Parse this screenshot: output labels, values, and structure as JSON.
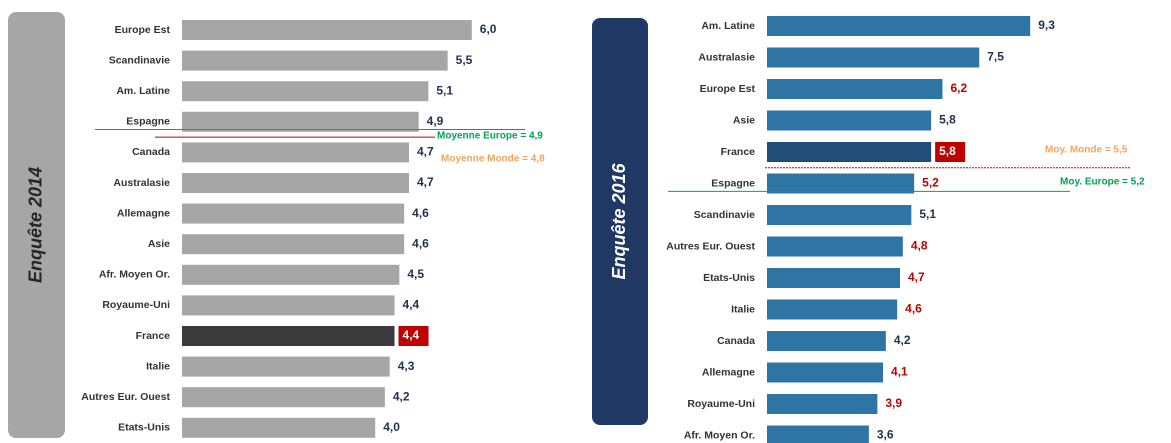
{
  "chart_data": [
    {
      "type": "bar",
      "orientation": "horizontal",
      "panel_label": "Enquête 2014",
      "categories": [
        "Europe Est",
        "Scandinavie",
        "Am. Latine",
        "Espagne",
        "Canada",
        "Australasie",
        "Allemagne",
        "Asie",
        "Afr. Moyen Or.",
        "Royaume-Uni",
        "France",
        "Italie",
        "Autres Eur. Ouest",
        "Etats-Unis"
      ],
      "values": [
        6.0,
        5.5,
        5.1,
        4.9,
        4.7,
        4.7,
        4.6,
        4.6,
        4.5,
        4.4,
        4.4,
        4.3,
        4.2,
        4.0
      ],
      "value_labels": [
        "6,0",
        "5,5",
        "5,1",
        "4,9",
        "4,7",
        "4,7",
        "4,6",
        "4,6",
        "4,5",
        "4,4",
        "4,4",
        "4,3",
        "4,2",
        "4,0"
      ],
      "colors": [
        "#a6a6a6",
        "#a6a6a6",
        "#a6a6a6",
        "#a6a6a6",
        "#a6a6a6",
        "#a6a6a6",
        "#a6a6a6",
        "#a6a6a6",
        "#a6a6a6",
        "#a6a6a6",
        "#3a3a3a",
        "#a6a6a6",
        "#a6a6a6",
        "#a6a6a6"
      ],
      "label_colors": [
        "#1f3050",
        "#1f3050",
        "#1f3050",
        "#1f3050",
        "#1f3050",
        "#1f3050",
        "#1f3050",
        "#1f3050",
        "#1f3050",
        "#1f3050",
        "#ffffff",
        "#1f3050",
        "#1f3050",
        "#1f3050"
      ],
      "label_box_color": "#c00000",
      "panel_color": "#a6a6a6",
      "panel_text_color": "#262626",
      "reference_lines": [
        {
          "label": "Moyenne Europe = 4,9",
          "value": 4.9,
          "color": "#00a651"
        },
        {
          "label": "Moyenne Monde = 4,8",
          "value": 4.8,
          "color": "#f4a460"
        }
      ]
    },
    {
      "type": "bar",
      "orientation": "horizontal",
      "panel_label": "Enquête 2016",
      "categories": [
        "Am. Latine",
        "Australasie",
        "Europe Est",
        "Asie",
        "France",
        "Espagne",
        "Scandinavie",
        "Autres Eur. Ouest",
        "Etats-Unis",
        "Italie",
        "Canada",
        "Allemagne",
        "Royaume-Uni",
        "Afr. Moyen Or."
      ],
      "values": [
        9.3,
        7.5,
        6.2,
        5.8,
        5.8,
        5.2,
        5.1,
        4.8,
        4.7,
        4.6,
        4.2,
        4.1,
        3.9,
        3.6
      ],
      "value_labels": [
        "9,3",
        "7,5",
        "6,2",
        "5,8",
        "5,8",
        "5,2",
        "5,1",
        "4,8",
        "4,7",
        "4,6",
        "4,2",
        "4,1",
        "3,9",
        "3,6"
      ],
      "colors": [
        "#2e75a6",
        "#2e75a6",
        "#2e75a6",
        "#2e75a6",
        "#1f4e79",
        "#2e75a6",
        "#2e75a6",
        "#2e75a6",
        "#2e75a6",
        "#2e75a6",
        "#2e75a6",
        "#2e75a6",
        "#2e75a6",
        "#2e75a6"
      ],
      "label_colors": [
        "#1f3050",
        "#1f3050",
        "#c00000",
        "#1f3050",
        "#ffffff",
        "#c00000",
        "#1f3050",
        "#c00000",
        "#c00000",
        "#c00000",
        "#1f3050",
        "#c00000",
        "#c00000",
        "#1f3050"
      ],
      "label_box_color": "#c00000",
      "panel_color": "#1f3864",
      "panel_text_color": "#ffffff",
      "reference_lines": [
        {
          "label": "Moy. Monde = 5,5",
          "value": 5.5,
          "color": "#f4a460"
        },
        {
          "label": "Moy. Europe = 5,2",
          "value": 5.2,
          "color": "#00a651"
        }
      ]
    }
  ]
}
